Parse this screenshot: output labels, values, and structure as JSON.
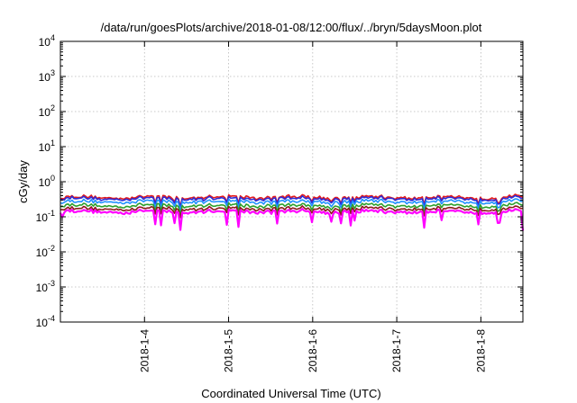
{
  "chart_data": {
    "type": "line",
    "title": "/data/run/goesPlots/archive/2018-01-08/12:00/flux/../bryn/5daysMoon.plot",
    "xlabel": "Coordinated Universal Time (UTC)",
    "ylabel": "cGy/day",
    "y_scale": "log",
    "ylim": [
      0.0001,
      10000
    ],
    "xlim": [
      "2018-01-03T00:00",
      "2018-01-08T12:00"
    ],
    "x_ticks": [
      "2018-1-4",
      "2018-1-5",
      "2018-1-6",
      "2018-1-7",
      "2018-1-8"
    ],
    "x_tick_dates": [
      "2018-01-04",
      "2018-01-05",
      "2018-01-06",
      "2018-01-07",
      "2018-01-08"
    ],
    "y_ticks": [
      {
        "value": 0.0001,
        "base": "10",
        "exp": "-4"
      },
      {
        "value": 0.001,
        "base": "10",
        "exp": "-3"
      },
      {
        "value": 0.01,
        "base": "10",
        "exp": "-2"
      },
      {
        "value": 0.1,
        "base": "10",
        "exp": "-1"
      },
      {
        "value": 1,
        "base": "10",
        "exp": "0"
      },
      {
        "value": 10,
        "base": "10",
        "exp": "1"
      },
      {
        "value": 100,
        "base": "10",
        "exp": "2"
      },
      {
        "value": 1000,
        "base": "10",
        "exp": "3"
      },
      {
        "value": 10000,
        "base": "10",
        "exp": "4"
      }
    ],
    "grid": true,
    "legend": "none",
    "series": [
      {
        "color": "#e41a1c",
        "level": 0.36
      },
      {
        "color": "#2b2bd6",
        "level": 0.33
      },
      {
        "color": "#1e90ff",
        "level": 0.27
      },
      {
        "color": "#2ca02c",
        "level": 0.21
      },
      {
        "color": "#8b1a1a",
        "level": 0.17
      },
      {
        "color": "#ff00ff",
        "level": 0.14
      }
    ]
  }
}
